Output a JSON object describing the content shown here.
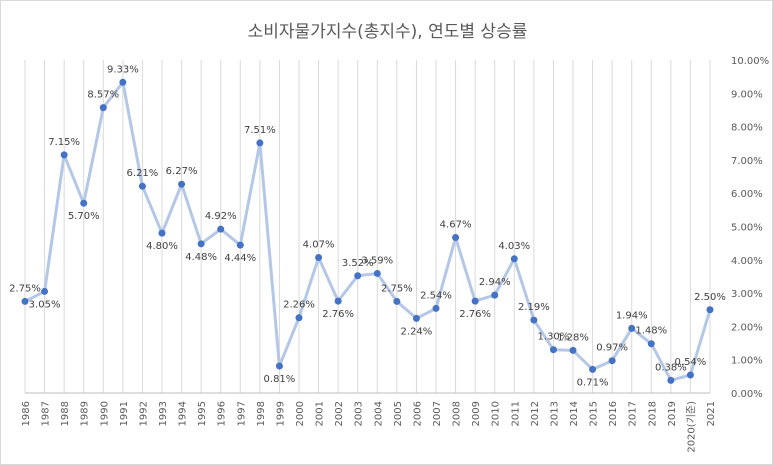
{
  "chart_data": {
    "type": "line",
    "title": "소비자물가지수(총지수), 연도별 상승률",
    "xlabel": "",
    "ylabel": "",
    "ylim": [
      0,
      10
    ],
    "y_ticks": [
      "0.00%",
      "1.00%",
      "2.00%",
      "3.00%",
      "4.00%",
      "5.00%",
      "6.00%",
      "7.00%",
      "8.00%",
      "9.00%",
      "10.00%"
    ],
    "y_tick_values": [
      0,
      1,
      2,
      3,
      4,
      5,
      6,
      7,
      8,
      9,
      10
    ],
    "y_axis_position": "right",
    "grid": "vertical",
    "legend": "none",
    "categories": [
      "1986",
      "1987",
      "1988",
      "1989",
      "1990",
      "1991",
      "1992",
      "1993",
      "1994",
      "1995",
      "1996",
      "1997",
      "1998",
      "1999",
      "2000",
      "2001",
      "2002",
      "2003",
      "2004",
      "2005",
      "2006",
      "2007",
      "2008",
      "2009",
      "2010",
      "2011",
      "2012",
      "2013",
      "2014",
      "2015",
      "2016",
      "2017",
      "2018",
      "2019",
      "2020(기준)",
      "2021"
    ],
    "series": [
      {
        "values": [
          2.75,
          3.05,
          7.15,
          5.7,
          8.57,
          9.33,
          6.21,
          4.8,
          6.27,
          4.48,
          4.92,
          4.44,
          7.51,
          0.81,
          2.26,
          4.07,
          2.76,
          3.52,
          3.59,
          2.75,
          2.24,
          2.54,
          4.67,
          2.76,
          2.94,
          4.03,
          2.19,
          1.3,
          1.28,
          0.71,
          0.97,
          1.94,
          1.48,
          0.38,
          0.54,
          2.5
        ],
        "labels": [
          "2.75%",
          "3.05%",
          "7.15%",
          "5.70%",
          "8.57%",
          "9.33%",
          "6.21%",
          "4.80%",
          "6.27%",
          "4.48%",
          "4.92%",
          "4.44%",
          "7.51%",
          "0.81%",
          "2.26%",
          "4.07%",
          "2.76%",
          "3.52%",
          "3.59%",
          "2.75%",
          "2.24%",
          "2.54%",
          "4.67%",
          "2.76%",
          "2.94%",
          "4.03%",
          "2.19%",
          "1.30%",
          "1.28%",
          "0.71%",
          "0.97%",
          "1.94%",
          "1.48%",
          "0.38%",
          "0.54%",
          "2.50%"
        ],
        "label_positions": [
          "above",
          "below",
          "above",
          "below",
          "above",
          "above",
          "above",
          "below",
          "above",
          "below",
          "above",
          "below",
          "above",
          "below",
          "above",
          "above",
          "below",
          "above",
          "above",
          "above",
          "below",
          "above",
          "above",
          "below",
          "above",
          "above",
          "above",
          "above",
          "above",
          "below",
          "above",
          "above",
          "above",
          "above",
          "above",
          "above"
        ]
      }
    ],
    "colors": {
      "line": "#b4c7e7",
      "marker": "#4472c4",
      "grid": "#d9d9d9",
      "text": "#595959"
    }
  }
}
